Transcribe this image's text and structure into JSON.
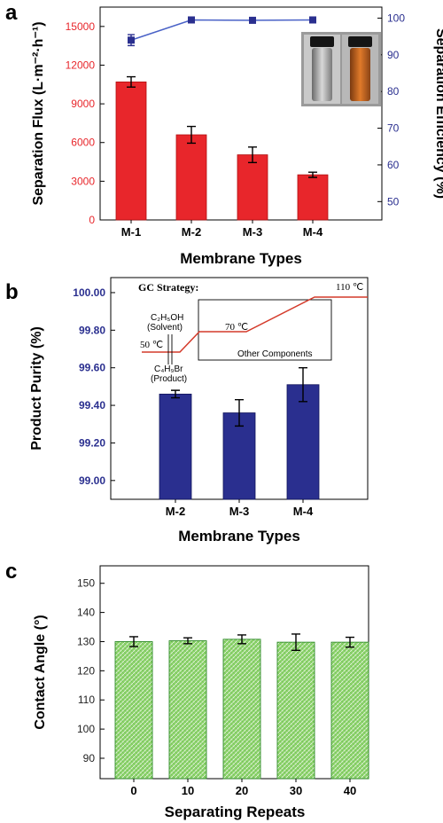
{
  "panels": {
    "a": {
      "label": "a"
    },
    "b": {
      "label": "b"
    },
    "c": {
      "label": "c"
    }
  },
  "colors": {
    "red_bar": "#e8262b",
    "blue": "#2a2f8f",
    "blue_line": "#4a62c7",
    "green_bar": "#8cd36a",
    "green_edge": "#2e8a28",
    "gc_line": "#d43a2a"
  },
  "chart_data": [
    {
      "panel": "a",
      "type": "bar",
      "categories": [
        "M-1",
        "M-2",
        "M-3",
        "M-4"
      ],
      "xlabel": "Membrane Types",
      "ylabel": "Separation Flux (L·m⁻²·h⁻¹)",
      "ylim": [
        0,
        16500
      ],
      "yticks": [
        0,
        3000,
        6000,
        9000,
        12000,
        15000
      ],
      "series": [
        {
          "name": "Separation Flux",
          "type": "bar",
          "values": [
            10700,
            6600,
            5050,
            3500
          ],
          "errors": [
            400,
            650,
            600,
            200
          ]
        }
      ],
      "secondary_axis": {
        "ylabel": "Separation Efficiency (%)",
        "ylim": [
          45,
          103
        ],
        "yticks": [
          50,
          60,
          70,
          80,
          90,
          100
        ],
        "series": [
          {
            "name": "Separation Efficiency",
            "type": "line",
            "values": [
              94,
              99.5,
              99.4,
              99.5
            ],
            "errors": [
              1.5,
              0.3,
              0.3,
              0.3
            ]
          }
        ]
      },
      "inset": "photo of two vials"
    },
    {
      "panel": "b",
      "type": "bar",
      "categories": [
        "M-2",
        "M-3",
        "M-4"
      ],
      "xlabel": "Membrane Types",
      "ylabel": "Product Purity (%)",
      "ylim": [
        98.9,
        100.08
      ],
      "yticks": [
        "99.00",
        "99.20",
        "99.40",
        "99.60",
        "99.80",
        "100.00"
      ],
      "series": [
        {
          "name": "Product Purity",
          "values": [
            99.46,
            99.36,
            99.51
          ],
          "errors": [
            0.02,
            0.07,
            0.09
          ]
        }
      ],
      "inset": {
        "title": "GC Strategy:",
        "labels": {
          "t50": "50 ℃",
          "t70": "70 ℃",
          "t110": "110 ℃",
          "solvent1": "C₂H₅OH",
          "solvent2": "(Solvent)",
          "product1": "C₄H₉Br",
          "product2": "(Product)",
          "other": "Other Components"
        }
      }
    },
    {
      "panel": "c",
      "type": "bar",
      "categories": [
        "0",
        "10",
        "20",
        "30",
        "40"
      ],
      "xlabel": "Separating Repeats",
      "ylabel": "Contact Angle (°)",
      "ylim": [
        83,
        156
      ],
      "yticks": [
        90,
        100,
        110,
        120,
        130,
        140,
        150
      ],
      "series": [
        {
          "name": "Contact Angle",
          "values": [
            130,
            130.3,
            130.8,
            129.8,
            129.8
          ],
          "errors": [
            1.7,
            1.0,
            1.5,
            2.8,
            1.7
          ]
        }
      ]
    }
  ]
}
